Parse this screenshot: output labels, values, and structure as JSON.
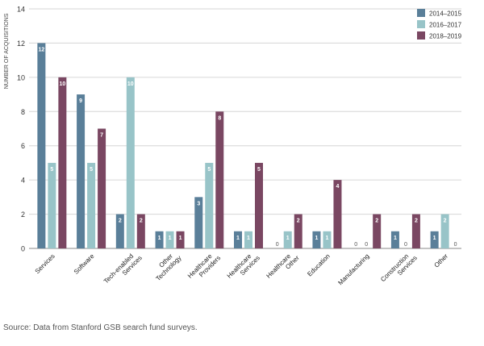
{
  "chart_data": {
    "type": "bar",
    "title": "",
    "xlabel": "",
    "ylabel": "NUMBER OF ACQUISITIONS",
    "ylim": [
      0,
      14
    ],
    "yticks": [
      0,
      2,
      4,
      6,
      8,
      10,
      12,
      14
    ],
    "grid": true,
    "legend_position": "top-right",
    "categories": [
      [
        "Services"
      ],
      [
        "Software"
      ],
      [
        "Tech-enabled",
        "Services"
      ],
      [
        "Other",
        "Technology"
      ],
      [
        "Healthcare",
        "Providers"
      ],
      [
        "Healthcare",
        "Services"
      ],
      [
        "Healthcare",
        "Other"
      ],
      [
        "Education"
      ],
      [
        "Manufacturing"
      ],
      [
        "Construction",
        "Services"
      ],
      [
        "Other"
      ]
    ],
    "series": [
      {
        "name": "2014–2015",
        "color": "#5a7f99",
        "values": [
          12,
          9,
          2,
          1,
          3,
          1,
          0,
          1,
          0,
          1,
          1
        ]
      },
      {
        "name": "2016–2017",
        "color": "#98c4c8",
        "values": [
          5,
          5,
          10,
          1,
          5,
          1,
          1,
          1,
          0,
          0,
          2
        ]
      },
      {
        "name": "2018–2019",
        "color": "#7a4762",
        "values": [
          10,
          7,
          2,
          1,
          8,
          5,
          2,
          4,
          2,
          2,
          0
        ]
      }
    ]
  },
  "footer": {
    "source": "Source: Data from Stanford GSB search fund surveys."
  }
}
